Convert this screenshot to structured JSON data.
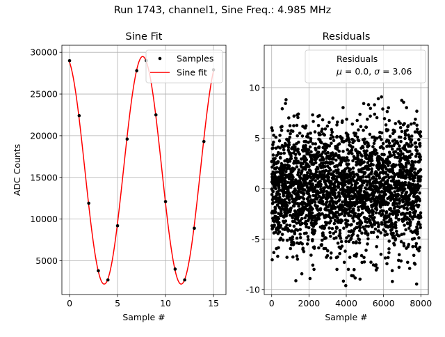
{
  "figure": {
    "suptitle": "Run 1743, channel1, Sine Freq.: 4.985 MHz"
  },
  "chart_data": [
    {
      "type": "line",
      "title": "Sine Fit",
      "xlabel": "Sample #",
      "ylabel": "ADC Counts",
      "xlim": [
        -0.8,
        16.3
      ],
      "ylim": [
        950,
        30850
      ],
      "xticks": [
        0,
        5,
        10,
        15
      ],
      "yticks": [
        5000,
        10000,
        15000,
        20000,
        25000,
        30000
      ],
      "grid": true,
      "legend_position": "top-right",
      "series": [
        {
          "name": "Samples",
          "style": "markers",
          "color": "#000000",
          "x": [
            0,
            1,
            2,
            3,
            4,
            5,
            6,
            7,
            8,
            9,
            10,
            11,
            12,
            13,
            14,
            15
          ],
          "y": [
            29000,
            22400,
            11900,
            3800,
            2700,
            9200,
            19600,
            27800,
            29000,
            22500,
            12100,
            4000,
            2700,
            8900,
            19300,
            27900
          ]
        },
        {
          "name": "Sine fit",
          "style": "line",
          "color": "#ff0000",
          "model": {
            "amplitude": 13650,
            "offset": 15850,
            "period_samples": 8.025,
            "peak_at_sample": 7.62
          },
          "x_range": [
            0,
            15
          ]
        }
      ]
    },
    {
      "type": "scatter",
      "title": "Residuals",
      "xlabel": "Sample #",
      "ylabel": "",
      "xlim": [
        -400,
        8400
      ],
      "ylim": [
        -10.5,
        14.2
      ],
      "xticks": [
        0,
        2000,
        4000,
        6000,
        8000
      ],
      "yticks": [
        -10,
        -5,
        0,
        5,
        10
      ],
      "grid": true,
      "legend_position": "top-right",
      "series": [
        {
          "name": "Residuals",
          "color": "#000000",
          "n_points": 8000,
          "mean": 0.0,
          "std": 3.06,
          "range": [
            -9.7,
            12.1
          ]
        }
      ],
      "legend_stats": {
        "label": "Residuals",
        "mu": "0.0",
        "sigma": "3.06"
      }
    }
  ]
}
